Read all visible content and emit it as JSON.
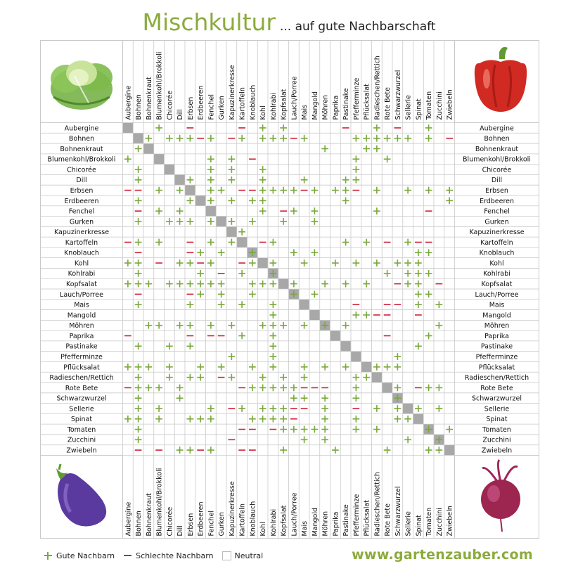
{
  "title": {
    "main": "Mischkultur",
    "sub": "... auf gute Nachbarschaft"
  },
  "website": "www.gartenzauber.com",
  "legend": {
    "good": "Gute Nachbarn",
    "bad": "Schlechte Nachbarn",
    "neutral": "Neutral"
  },
  "colors": {
    "good": "#79a83a",
    "bad": "#d0203a",
    "diagonal": "#a8a8a8",
    "grid": "#c9c9c9",
    "accent": "#8bab3c"
  },
  "illustrations": [
    "lettuce",
    "red-pepper",
    "eggplant",
    "beetroot"
  ],
  "chart_data": {
    "type": "table",
    "title": "Mischkultur",
    "legend": {
      "+": "Gute Nachbarn",
      "-": "Schlechte Nachbarn",
      "": "Neutral"
    },
    "categories": [
      "Aubergine",
      "Bohnen",
      "Bohnenkraut",
      "Blumenkohl/Brokkoli",
      "Chicorée",
      "Dill",
      "Erbsen",
      "Erdbeeren",
      "Fenchel",
      "Gurken",
      "Kapuzinerkresse",
      "Kartoffeln",
      "Knoblauch",
      "Kohl",
      "Kohlrabi",
      "Kopfsalat",
      "Lauch/Porree",
      "Mais",
      "Mangold",
      "Möhren",
      "Paprika",
      "Pastinake",
      "Pfefferminze",
      "Pflücksalat",
      "Radieschen/Rettich",
      "Rote Bete",
      "Schwarzwurzel",
      "Sellerie",
      "Spinat",
      "Tomaten",
      "Zucchini",
      "Zwiebeln"
    ],
    "matrix": [
      "...+..-....-.+.+.....-..+.-..+..",
      "..+.+++-+.-+.+++-+....++++++.+.-",
      ".+.................+...++.......",
      "+.......+.+.-.........+..+......",
      ".+......+.+..+........+.........",
      ".+....+.+.+..+...+...++.........",
      "--.+.+..++.--++++-+.++-.+..+.+.+",
      ".+....+.+.+.++.......+.........+",
      ".-.+.+.......+.-+.+.....+....-..",
      ".+..+++.+.+.+..+..+.............",
      "...........+....................",
      "-+.+..-.+.+..-+......+.+.-.+--..",
      ".-....-+.+..+...+.+.........++..",
      "++.-.++-+..-+.+..+..+.+.+.+++...",
      ".+.....+.-.+..+..........+.+++..",
      "+++.++++++..+++.+..+.+.+..-++.-.",
      ".-....-+.+..+...+.+.........++..",
      ".+....+..+.+..+.......-..--.+.+.",
      "..............+.......++--..-...",
      "..++.++.+.+..+++.+.+.+........+.",
      "-.....-.--.+..+..........-...+..",
      ".+..+.+.......+.............+...",
      "..........+...+...........+.....",
      "+++.+..+.+..+.+..+.+.+..+++.....",
      ".+..+.++.-+..+.+.+....++........",
      "-+++.+.....-+++++---..+...+.-++.",
      ".+...+..........++.+..+...+.....",
      ".+.+....+.-+.+++--.+..-.+.+.+.+.",
      "++.+..+++...++++-..+..+...++....",
      ".+.........--.-+++++..+.+....+.+",
      ".+........-......+.+.......+..+.",
      ".-.-.++-+..--..+....+....+...++."
    ]
  }
}
